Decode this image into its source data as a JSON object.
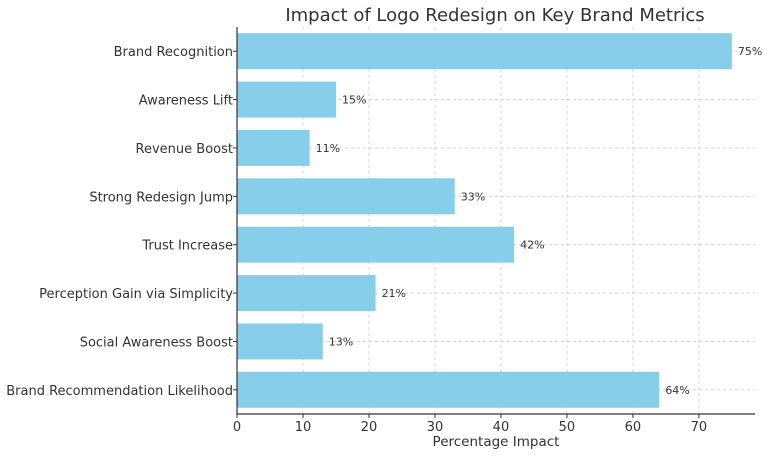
{
  "chart_data": {
    "type": "bar",
    "orientation": "horizontal",
    "title": "Impact of Logo Redesign on Key Brand Metrics",
    "xlabel": "Percentage Impact",
    "ylabel": "",
    "categories": [
      "Brand Recognition",
      "Awareness Lift",
      "Revenue Boost",
      "Strong Redesign Jump",
      "Trust Increase",
      "Perception Gain via Simplicity",
      "Social Awareness Boost",
      "Brand Recommendation Likelihood"
    ],
    "values": [
      75,
      15,
      11,
      33,
      42,
      21,
      13,
      64
    ],
    "data_labels": [
      "75%",
      "15%",
      "11%",
      "33%",
      "42%",
      "21%",
      "13%",
      "64%"
    ],
    "xlim": [
      0,
      78.5
    ],
    "xticks": [
      "0",
      "10",
      "20",
      "30",
      "40",
      "50",
      "60",
      "70"
    ],
    "grid": true,
    "bar_color": "#87ceeb"
  }
}
